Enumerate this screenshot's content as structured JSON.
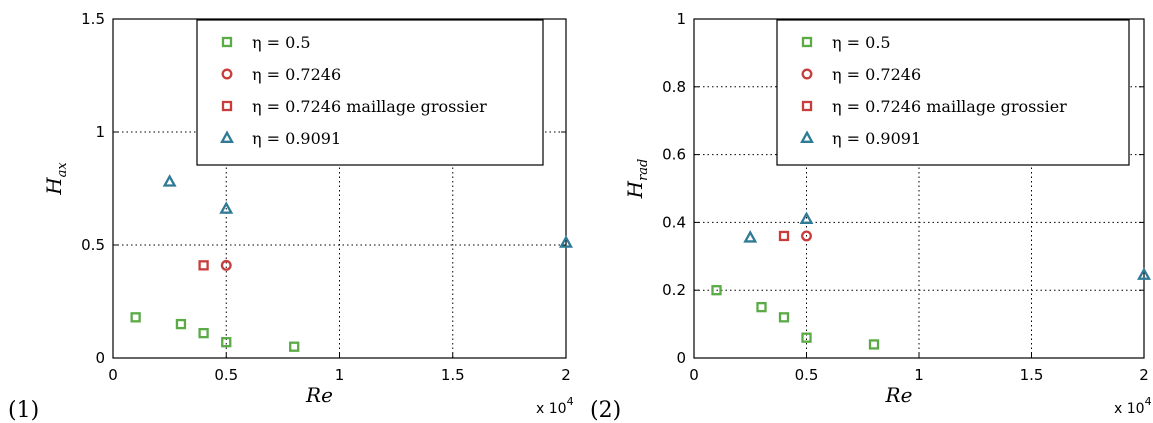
{
  "chart_data": [
    {
      "type": "scatter",
      "panel_label": "(1)",
      "xlabel": "Re",
      "ylabel": {
        "base": "H",
        "sub": "ax"
      },
      "xlim": [
        0,
        20000
      ],
      "ylim": [
        0,
        1.5
      ],
      "x_multiplier": "x 10",
      "x_multiplier_exp": "4",
      "xticks": [
        {
          "value": 0,
          "label": "0"
        },
        {
          "value": 5000,
          "label": "0.5"
        },
        {
          "value": 10000,
          "label": "1"
        },
        {
          "value": 15000,
          "label": "1.5"
        },
        {
          "value": 20000,
          "label": "2"
        }
      ],
      "yticks": [
        {
          "value": 0,
          "label": "0"
        },
        {
          "value": 0.5,
          "label": "0.5"
        },
        {
          "value": 1,
          "label": "1"
        },
        {
          "value": 1.5,
          "label": "1.5"
        }
      ],
      "grid": true,
      "legend_position": "top-right",
      "series": [
        {
          "name": "η = 0.5",
          "marker": "square",
          "color": "#5aaa46",
          "points": [
            [
              1000,
              0.18
            ],
            [
              3000,
              0.15
            ],
            [
              4000,
              0.11
            ],
            [
              5000,
              0.07
            ],
            [
              8000,
              0.05
            ]
          ]
        },
        {
          "name": "η = 0.7246",
          "marker": "circle",
          "color": "#c83c3c",
          "points": [
            [
              5000,
              0.41
            ]
          ]
        },
        {
          "name": "η = 0.7246 maillage grossier",
          "marker": "square",
          "color": "#c83c3c",
          "points": [
            [
              4000,
              0.41
            ]
          ]
        },
        {
          "name": "η = 0.9091",
          "marker": "triangle",
          "color": "#2f7a95",
          "points": [
            [
              2500,
              0.78
            ],
            [
              5000,
              0.66
            ],
            [
              20000,
              0.51
            ]
          ]
        }
      ]
    },
    {
      "type": "scatter",
      "panel_label": "(2)",
      "xlabel": "Re",
      "ylabel": {
        "base": "H",
        "sub": "rad"
      },
      "xlim": [
        0,
        20000
      ],
      "ylim": [
        0,
        1
      ],
      "x_multiplier": "x 10",
      "x_multiplier_exp": "4",
      "xticks": [
        {
          "value": 0,
          "label": "0"
        },
        {
          "value": 5000,
          "label": "0.5"
        },
        {
          "value": 10000,
          "label": "1"
        },
        {
          "value": 15000,
          "label": "1.5"
        },
        {
          "value": 20000,
          "label": "2"
        }
      ],
      "yticks": [
        {
          "value": 0,
          "label": "0"
        },
        {
          "value": 0.2,
          "label": "0.2"
        },
        {
          "value": 0.4,
          "label": "0.4"
        },
        {
          "value": 0.6,
          "label": "0.6"
        },
        {
          "value": 0.8,
          "label": "0.8"
        },
        {
          "value": 1,
          "label": "1"
        }
      ],
      "grid": true,
      "legend_position": "top-right",
      "series": [
        {
          "name": "η = 0.5",
          "marker": "square",
          "color": "#5aaa46",
          "points": [
            [
              1000,
              0.2
            ],
            [
              3000,
              0.15
            ],
            [
              4000,
              0.12
            ],
            [
              5000,
              0.06
            ],
            [
              8000,
              0.04
            ]
          ]
        },
        {
          "name": "η = 0.7246",
          "marker": "circle",
          "color": "#c83c3c",
          "points": [
            [
              5000,
              0.36
            ]
          ]
        },
        {
          "name": "η = 0.7246 maillage grossier",
          "marker": "square",
          "color": "#c83c3c",
          "points": [
            [
              4000,
              0.36
            ]
          ]
        },
        {
          "name": "η = 0.9091",
          "marker": "triangle",
          "color": "#2f7a95",
          "points": [
            [
              2500,
              0.355
            ],
            [
              5000,
              0.41
            ],
            [
              20000,
              0.245
            ]
          ]
        }
      ]
    }
  ]
}
